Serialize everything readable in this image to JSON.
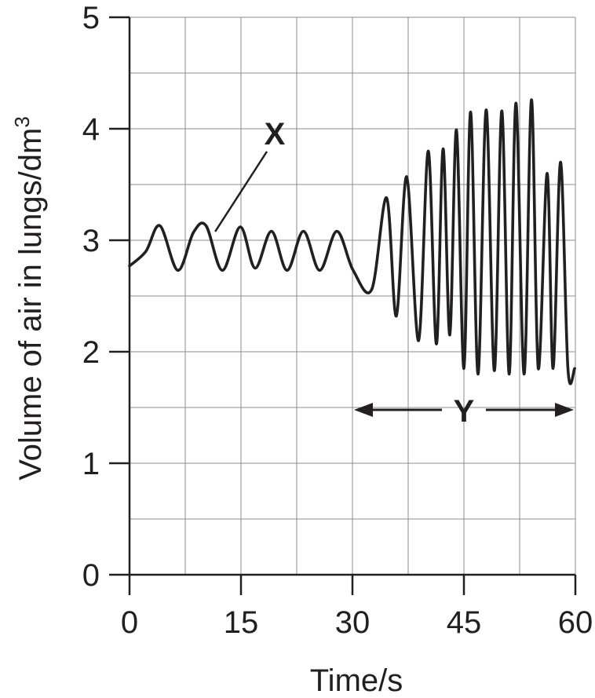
{
  "chart_data": {
    "type": "line",
    "xlabel": "Time/s",
    "ylabel": "Volume of air in lungs/dm",
    "ylabel_superscript": "3",
    "xlim": [
      0,
      60
    ],
    "ylim": [
      0,
      5
    ],
    "x_ticks": [
      "0",
      "15",
      "30",
      "45",
      "60"
    ],
    "y_ticks": [
      "0",
      "1",
      "2",
      "3",
      "4",
      "5"
    ],
    "grid": true,
    "series": [
      {
        "x": [
          0.0,
          2.2,
          4.1,
          6.5,
          8.6,
          10.3,
          12.5,
          14.9,
          16.9,
          19.1,
          21.2,
          23.4,
          25.6,
          27.9,
          30.1,
          32.6,
          34.6,
          35.9,
          37.3,
          38.9,
          40.2,
          41.3,
          42.2,
          43.1,
          44.0,
          45.0,
          45.9,
          46.9,
          48.0,
          49.1,
          50.1,
          51.1,
          52.0,
          53.1,
          54.1,
          55.0,
          56.2,
          57.0,
          58.0,
          59.0,
          59.9
        ],
        "y": [
          2.77,
          2.9,
          3.13,
          2.73,
          3.07,
          3.13,
          2.73,
          3.12,
          2.75,
          3.08,
          2.73,
          3.08,
          2.73,
          3.08,
          2.73,
          2.56,
          3.38,
          2.32,
          3.57,
          2.1,
          3.8,
          2.07,
          3.82,
          2.15,
          3.99,
          1.85,
          4.15,
          1.8,
          4.17,
          1.83,
          4.16,
          1.8,
          4.23,
          1.8,
          4.26,
          1.85,
          3.6,
          1.85,
          3.7,
          1.85,
          1.85
        ]
      }
    ],
    "annotations": [
      {
        "label": "X",
        "points_to": {
          "x": 11,
          "y": 3.05
        }
      },
      {
        "label": "Y",
        "x_from": 30,
        "x_to": 60,
        "y": 1.5
      }
    ]
  }
}
